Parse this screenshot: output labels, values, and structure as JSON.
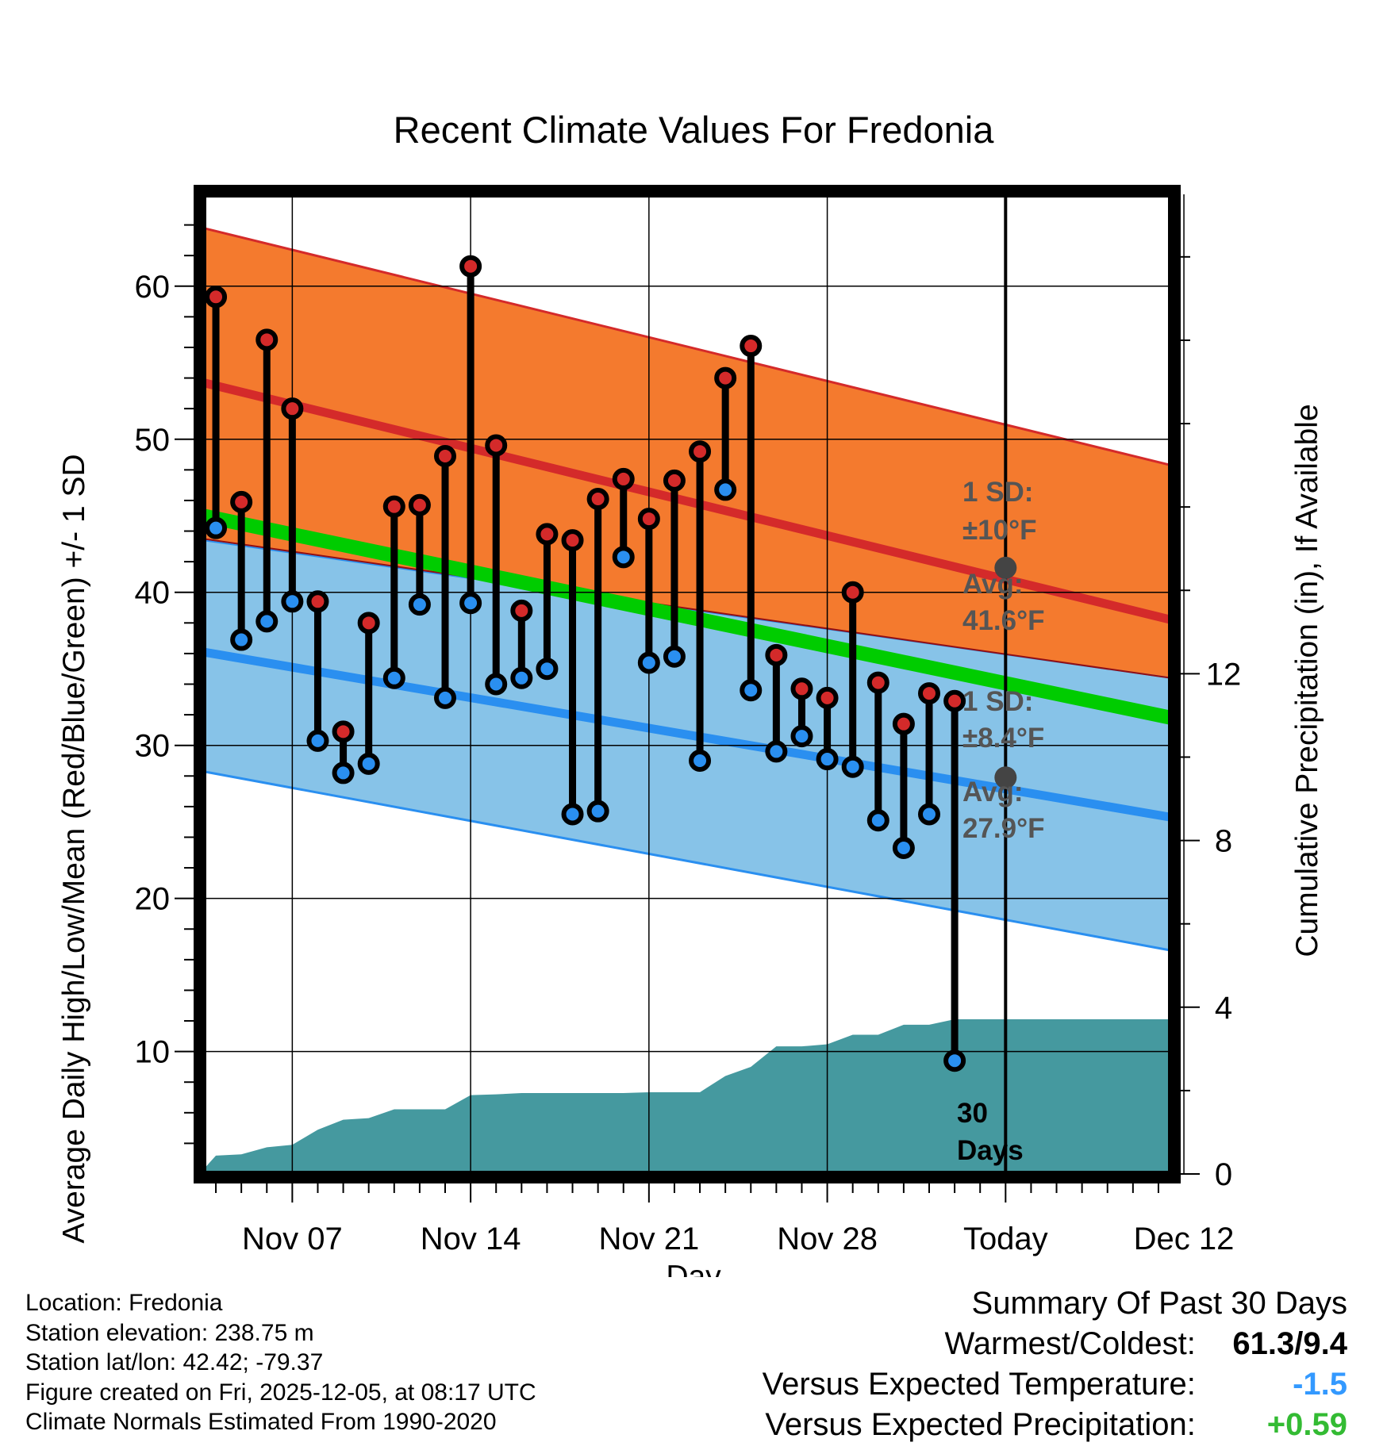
{
  "colors": {
    "high_band": "#f47a2e",
    "high_line": "#d42a2a",
    "low_band": "#87c3e8",
    "low_line": "#2a8ff0",
    "overlap": "#920f14",
    "mean_line": "#00cc00",
    "precip": "#45999f",
    "red_dot": "#d42a2a",
    "blue_dot": "#2a8ff0",
    "avg_dot": "#444444",
    "cold_text": "#3399ff",
    "precip_text": "#33bb33"
  },
  "chart_data": {
    "type": "line",
    "title": "Recent Climate Values For Fredonia",
    "xlabel": "Day",
    "ylabel": "Average Daily High/Low/Mean (Red/Blue/Green) +/- 1 SD",
    "y2label": "Cumulative Precipitation (in), If Available",
    "ylim": [
      2,
      66
    ],
    "y2lim": [
      0,
      23.5
    ],
    "y_ticks": [
      "10",
      "20",
      "30",
      "40",
      "50",
      "60"
    ],
    "y_tick_values": [
      10,
      20,
      30,
      40,
      50,
      60
    ],
    "y2_ticks": [
      "0",
      "4",
      "8",
      "12"
    ],
    "y2_tick_values": [
      0,
      4,
      8,
      12
    ],
    "x_range_days": [
      3.5,
      41.5
    ],
    "x_ticks": [
      "Nov 07",
      "Nov 14",
      "Nov 21",
      "Nov 28",
      "Today",
      "Dec 12"
    ],
    "x_tick_days": [
      7,
      14,
      21,
      28,
      35,
      42
    ],
    "today_day": 35,
    "normals": {
      "days": [
        3.5,
        41.5
      ],
      "high_mean": [
        53.7,
        38.2
      ],
      "high_upper": [
        63.8,
        48.3
      ],
      "high_lower": [
        43.5,
        34.4
      ],
      "low_mean": [
        36.1,
        25.3
      ],
      "low_upper": [
        43.4,
        34.4
      ],
      "low_lower": [
        28.3,
        16.6
      ],
      "daily_mean": [
        45.0,
        31.8
      ]
    },
    "highs": [
      {
        "day": 4,
        "value": 59.3
      },
      {
        "day": 5,
        "value": 45.9
      },
      {
        "day": 6,
        "value": 56.5
      },
      {
        "day": 7,
        "value": 52.0
      },
      {
        "day": 8,
        "value": 39.4
      },
      {
        "day": 9,
        "value": 30.9
      },
      {
        "day": 10,
        "value": 38.0
      },
      {
        "day": 11,
        "value": 45.6
      },
      {
        "day": 12,
        "value": 45.7
      },
      {
        "day": 13,
        "value": 48.9
      },
      {
        "day": 14,
        "value": 61.3
      },
      {
        "day": 15,
        "value": 49.6
      },
      {
        "day": 16,
        "value": 38.8
      },
      {
        "day": 17,
        "value": 43.8
      },
      {
        "day": 18,
        "value": 43.4
      },
      {
        "day": 19,
        "value": 46.1
      },
      {
        "day": 20,
        "value": 47.4
      },
      {
        "day": 21,
        "value": 44.8
      },
      {
        "day": 22,
        "value": 47.3
      },
      {
        "day": 23,
        "value": 49.2
      },
      {
        "day": 24,
        "value": 54.0
      },
      {
        "day": 25,
        "value": 56.1
      },
      {
        "day": 26,
        "value": 35.9
      },
      {
        "day": 27,
        "value": 33.7
      },
      {
        "day": 28,
        "value": 33.1
      },
      {
        "day": 29,
        "value": 40.0
      },
      {
        "day": 30,
        "value": 34.1
      },
      {
        "day": 31,
        "value": 31.4
      },
      {
        "day": 32,
        "value": 33.4
      },
      {
        "day": 33,
        "value": 32.9
      }
    ],
    "lows": [
      {
        "day": 4,
        "value": 44.2
      },
      {
        "day": 5,
        "value": 36.9
      },
      {
        "day": 6,
        "value": 38.1
      },
      {
        "day": 7,
        "value": 39.4
      },
      {
        "day": 8,
        "value": 30.3
      },
      {
        "day": 9,
        "value": 28.2
      },
      {
        "day": 10,
        "value": 28.8
      },
      {
        "day": 11,
        "value": 34.4
      },
      {
        "day": 12,
        "value": 39.2
      },
      {
        "day": 13,
        "value": 33.1
      },
      {
        "day": 14,
        "value": 39.3
      },
      {
        "day": 15,
        "value": 34.0
      },
      {
        "day": 16,
        "value": 34.4
      },
      {
        "day": 17,
        "value": 35.0
      },
      {
        "day": 18,
        "value": 25.5
      },
      {
        "day": 19,
        "value": 25.7
      },
      {
        "day": 20,
        "value": 42.3
      },
      {
        "day": 21,
        "value": 35.4
      },
      {
        "day": 22,
        "value": 35.8
      },
      {
        "day": 23,
        "value": 29.0
      },
      {
        "day": 24,
        "value": 46.7
      },
      {
        "day": 25,
        "value": 33.6
      },
      {
        "day": 26,
        "value": 29.6
      },
      {
        "day": 27,
        "value": 30.6
      },
      {
        "day": 28,
        "value": 29.1
      },
      {
        "day": 29,
        "value": 28.6
      },
      {
        "day": 30,
        "value": 25.1
      },
      {
        "day": 31,
        "value": 23.3
      },
      {
        "day": 32,
        "value": 25.5
      },
      {
        "day": 33,
        "value": 9.4
      }
    ],
    "precip_cumulative": {
      "days": [
        3.5,
        4,
        5,
        6,
        7,
        8,
        9,
        10,
        11,
        12,
        13,
        14,
        15,
        16,
        17,
        18,
        19,
        20,
        21,
        22,
        23,
        24,
        25,
        26,
        27,
        28,
        29,
        30,
        31,
        32,
        33,
        34,
        35,
        41.5
      ],
      "values": [
        0.1,
        0.44,
        0.47,
        0.64,
        0.7,
        1.06,
        1.3,
        1.34,
        1.55,
        1.55,
        1.55,
        1.89,
        1.91,
        1.94,
        1.94,
        1.94,
        1.94,
        1.94,
        1.96,
        1.96,
        1.96,
        2.35,
        2.57,
        3.06,
        3.06,
        3.11,
        3.34,
        3.34,
        3.58,
        3.58,
        3.71,
        3.71,
        3.71,
        3.71
      ]
    },
    "annotations": {
      "high_sd_label": "1 SD:",
      "high_sd_value": "±10°F",
      "high_avg_label": "Avg:",
      "high_avg_value": "41.6°F",
      "high_avg_number": 41.6,
      "low_sd_label": "1 SD:",
      "low_sd_value": "±8.4°F",
      "low_avg_label": "Avg:",
      "low_avg_value": "27.9°F",
      "low_avg_number": 27.9,
      "period_number": "30",
      "period_unit": "Days"
    }
  },
  "info": {
    "location": "Location: Fredonia",
    "elevation": "Station elevation: 238.75 m",
    "latlon": "Station lat/lon: 42.42; -79.37",
    "created": "Figure created on Fri, 2025-12-05, at 08:17 UTC",
    "normals": "Climate Normals Estimated From 1990-2020"
  },
  "summary": {
    "heading": "Summary Of Past 30 Days",
    "warm_cold_label": "Warmest/Coldest:",
    "warm_cold_value": "61.3/9.4",
    "temp_label": "Versus Expected Temperature:",
    "temp_value": "-1.5",
    "precip_label": "Versus Expected Precipitation:",
    "precip_value": "+0.59"
  }
}
